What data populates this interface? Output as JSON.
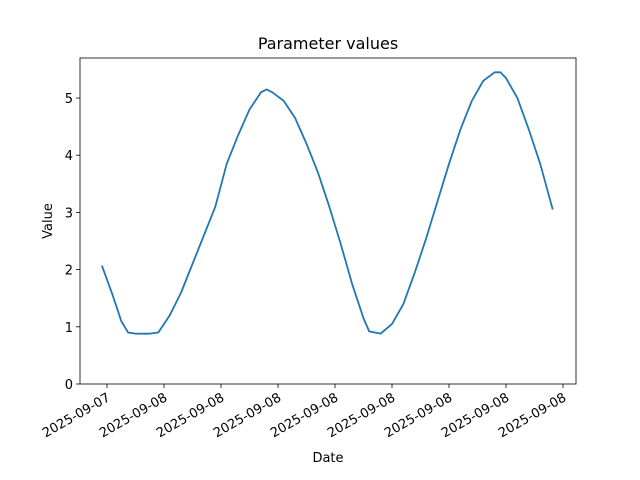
{
  "chart_data": {
    "type": "line",
    "title": "Parameter values",
    "x_label": "Date",
    "y_label": "Value",
    "x": [
      -0.09,
      0.1,
      0.25,
      0.37,
      0.5,
      0.75,
      0.9,
      1.1,
      1.3,
      1.5,
      1.7,
      1.9,
      2.1,
      2.3,
      2.5,
      2.7,
      2.8,
      2.9,
      3.1,
      3.3,
      3.5,
      3.7,
      3.9,
      4.1,
      4.3,
      4.5,
      4.6,
      4.8,
      5.0,
      5.2,
      5.4,
      5.6,
      5.8,
      6.0,
      6.2,
      6.4,
      6.6,
      6.8,
      6.9,
      7.0,
      7.2,
      7.4,
      7.6,
      7.82
    ],
    "series": [
      {
        "color": "#1f77b4",
        "values": [
          2.07,
          1.55,
          1.1,
          0.9,
          0.88,
          0.88,
          0.9,
          1.2,
          1.6,
          2.1,
          2.6,
          3.1,
          3.85,
          4.35,
          4.8,
          5.1,
          5.15,
          5.1,
          4.95,
          4.65,
          4.2,
          3.7,
          3.1,
          2.45,
          1.75,
          1.15,
          0.92,
          0.88,
          1.05,
          1.4,
          1.95,
          2.55,
          3.2,
          3.85,
          4.45,
          4.95,
          5.3,
          5.45,
          5.45,
          5.35,
          5.0,
          4.45,
          3.85,
          3.05
        ]
      }
    ],
    "xlim": [
      -0.474,
      8.228
    ],
    "xticks": [
      {
        "value": 0,
        "label": "2025-09-07"
      },
      {
        "value": 1,
        "label": "2025-09-08"
      },
      {
        "value": 2,
        "label": "2025-09-08"
      },
      {
        "value": 3,
        "label": "2025-09-08"
      },
      {
        "value": 4,
        "label": "2025-09-08"
      },
      {
        "value": 5,
        "label": "2025-09-08"
      },
      {
        "value": 6,
        "label": "2025-09-08"
      },
      {
        "value": 7,
        "label": "2025-09-08"
      },
      {
        "value": 8,
        "label": "2025-09-08"
      }
    ],
    "ylim": [
      0,
      5.7
    ],
    "yticks": [
      0,
      1,
      2,
      3,
      4,
      5
    ]
  }
}
